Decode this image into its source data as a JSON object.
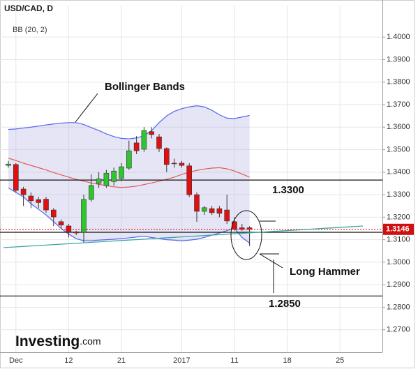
{
  "chart_data": {
    "type": "candlestick",
    "title": "USD/CAD, D",
    "indicator_label": "BB (20, 2)",
    "categories": [
      null,
      "Dec",
      null,
      null,
      null,
      null,
      null,
      null,
      "12",
      null,
      null,
      null,
      null,
      null,
      null,
      "21",
      null,
      null,
      null,
      null,
      null,
      null,
      null,
      "2017",
      null,
      null,
      null,
      null,
      null,
      null,
      "11",
      null,
      null,
      null,
      null,
      null,
      null,
      "18",
      null,
      null,
      null,
      null,
      null,
      null,
      "25"
    ],
    "open": [
      1.343,
      1.3434,
      1.3325,
      1.3294,
      1.3278,
      1.328,
      1.3232,
      1.318,
      1.3161,
      1.3135,
      1.3133,
      1.3279,
      1.335,
      1.334,
      1.3358,
      1.3372,
      1.3418,
      1.353,
      1.3502,
      1.358,
      1.3557,
      1.3505,
      1.344,
      1.344,
      1.3428,
      1.33,
      1.3226,
      1.3238,
      1.3238,
      1.3232,
      1.318,
      1.3153,
      1.3153,
      null,
      null,
      null,
      null,
      null,
      null,
      null,
      null,
      null,
      null,
      null,
      null
    ],
    "high": [
      1.345,
      1.344,
      1.3335,
      1.331,
      1.329,
      1.329,
      1.324,
      1.319,
      1.317,
      1.314,
      1.33,
      1.339,
      1.34,
      1.341,
      1.342,
      1.344,
      1.354,
      1.356,
      1.36,
      1.36,
      1.357,
      1.351,
      1.346,
      1.345,
      1.344,
      1.331,
      1.325,
      1.325,
      1.325,
      1.33,
      1.32,
      1.317,
      1.316,
      null,
      null,
      null,
      null,
      null,
      null,
      null,
      null,
      null,
      null,
      null,
      null
    ],
    "low": [
      1.342,
      1.331,
      1.325,
      1.324,
      1.324,
      1.322,
      1.316,
      1.315,
      1.311,
      1.312,
      1.3085,
      1.327,
      1.333,
      1.333,
      1.334,
      1.336,
      1.341,
      1.348,
      1.349,
      1.355,
      1.349,
      1.34,
      1.342,
      1.342,
      1.329,
      1.318,
      1.321,
      1.321,
      1.32,
      1.317,
      1.314,
      1.314,
      1.3072,
      null,
      null,
      null,
      null,
      null,
      null,
      null,
      null,
      null,
      null,
      null,
      null
    ],
    "close": [
      1.3436,
      1.3319,
      1.33,
      1.3273,
      1.3265,
      1.3232,
      1.3201,
      1.3165,
      1.3133,
      1.313,
      1.3279,
      1.3341,
      1.337,
      1.3395,
      1.3405,
      1.3424,
      1.3495,
      1.3495,
      1.3585,
      1.3567,
      1.3505,
      1.3434,
      1.3437,
      1.343,
      1.33,
      1.3226,
      1.3242,
      1.322,
      1.3217,
      1.3183,
      1.3146,
      1.3146,
      1.3146,
      null,
      null,
      null,
      null,
      null,
      null,
      null,
      null,
      null,
      null,
      null,
      null
    ],
    "up_color": "#2ec52e",
    "down_color": "#e01010",
    "bands": [
      {
        "color": "#5566ee",
        "values": [
          1.359,
          1.3592,
          1.3596,
          1.36,
          1.3605,
          1.361,
          1.3614,
          1.3618,
          1.362,
          1.362,
          1.3612,
          1.3598,
          1.3585,
          1.357,
          1.3558,
          1.355,
          1.3548,
          1.3552,
          1.3562,
          1.3585,
          1.362,
          1.365,
          1.367,
          1.3682,
          1.369,
          1.3695,
          1.369,
          1.3675,
          1.3655,
          1.364,
          1.3638,
          1.3645,
          1.3652,
          null,
          null,
          null,
          null,
          null,
          null,
          null,
          null,
          null,
          null,
          null,
          null
        ]
      },
      {
        "color": "#e05a5a",
        "values": [
          1.3462,
          1.3452,
          1.344,
          1.343,
          1.342,
          1.341,
          1.3398,
          1.3388,
          1.3378,
          1.3368,
          1.336,
          1.3352,
          1.3346,
          1.334,
          1.3335,
          1.3332,
          1.3334,
          1.3338,
          1.3345,
          1.3352,
          1.336,
          1.3368,
          1.3378,
          1.339,
          1.34,
          1.3408,
          1.3414,
          1.3418,
          1.342,
          1.3415,
          1.3405,
          1.3392,
          1.3378,
          null,
          null,
          null,
          null,
          null,
          null,
          null,
          null,
          null,
          null,
          null,
          null
        ]
      },
      {
        "color": "#5566ee",
        "values": [
          1.333,
          1.331,
          1.329,
          1.326,
          1.3235,
          1.321,
          1.318,
          1.315,
          1.3125,
          1.3105,
          1.3095,
          1.3095,
          1.3098,
          1.31,
          1.3102,
          1.3105,
          1.3108,
          1.3112,
          1.3115,
          1.311,
          1.3105,
          1.31,
          1.3098,
          1.3095,
          1.3098,
          1.3102,
          1.311,
          1.312,
          1.313,
          1.314,
          1.315,
          1.311,
          1.3085,
          null,
          null,
          null,
          null,
          null,
          null,
          null,
          null,
          null,
          null,
          null,
          null
        ]
      }
    ],
    "levels": [
      1.3365,
      1.3133,
      1.285
    ],
    "last_price": {
      "value": 1.3146,
      "label": "1.3146"
    },
    "ylim": [
      1.26,
      1.414
    ],
    "yticks": [
      {
        "value": 1.27,
        "label": "1.2700"
      },
      {
        "value": 1.28,
        "label": "1.2800"
      },
      {
        "value": 1.29,
        "label": "1.2900"
      },
      {
        "value": 1.3,
        "label": "1.3000"
      },
      {
        "value": 1.31,
        "label": "1.3100"
      },
      {
        "value": 1.32,
        "label": "1.3200"
      },
      {
        "value": 1.33,
        "label": "1.3300"
      },
      {
        "value": 1.34,
        "label": "1.3400"
      },
      {
        "value": 1.35,
        "label": "1.3500"
      },
      {
        "value": 1.36,
        "label": "1.3600"
      },
      {
        "value": 1.37,
        "label": "1.3700"
      },
      {
        "value": 1.38,
        "label": "1.3800"
      },
      {
        "value": 1.39,
        "label": "1.3900"
      },
      {
        "value": 1.4,
        "label": "1.4000"
      }
    ],
    "grid": true,
    "annotations": [
      "Bollinger Bands",
      "1.3300",
      "Long Hammer",
      "1.2850"
    ],
    "logo": "Investing",
    "logo_suffix": ".com"
  }
}
